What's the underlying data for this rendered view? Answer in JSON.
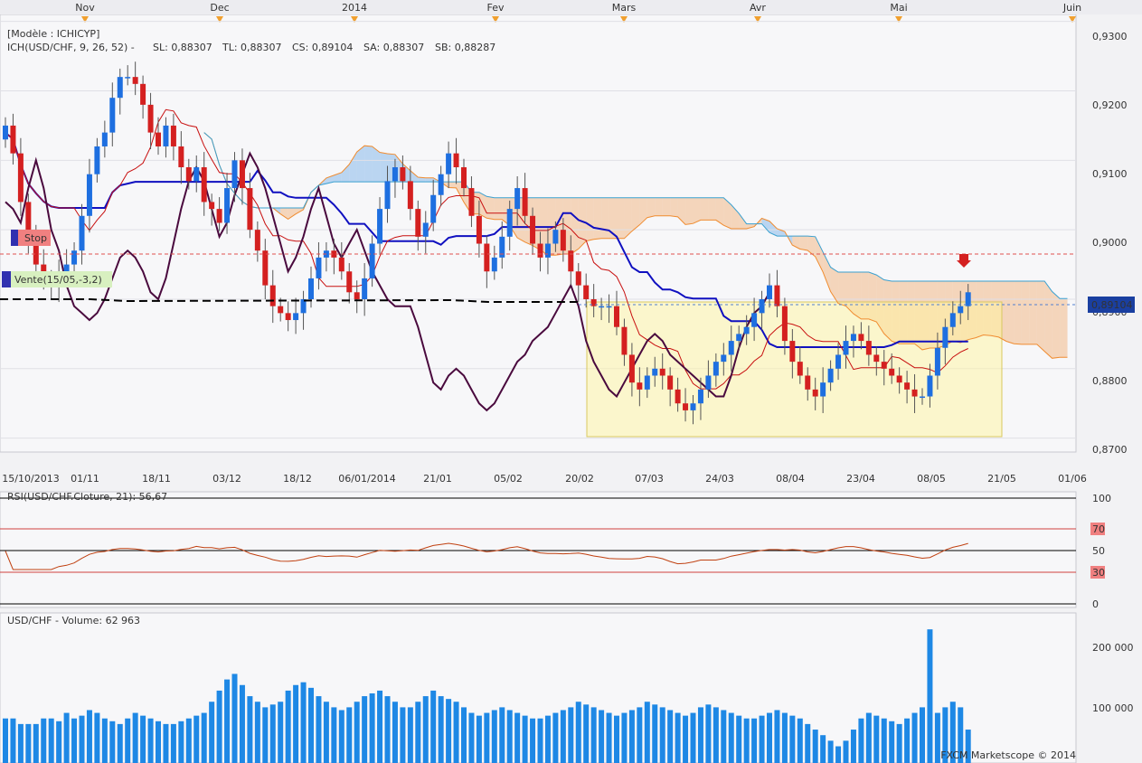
{
  "months": [
    "Nov",
    "Dec",
    "2014",
    "Fev",
    "Mars",
    "Avr",
    "Mai",
    "Juin"
  ],
  "date_labels": [
    "15/10/2013",
    "01/11",
    "18/11",
    "03/12",
    "18/12",
    "06/01/2014",
    "21/01",
    "05/02",
    "20/02",
    "07/03",
    "24/03",
    "08/04",
    "23/04",
    "08/05",
    "21/05",
    "01/06"
  ],
  "legend": {
    "model": "[Modèle : ICHICYP]",
    "ich": "ICH(USD/CHF, 9, 26, 52) -",
    "sl": "SL: 0,88307",
    "tl": "TL: 0,88307",
    "cs": "CS: 0,89104",
    "sa": "SA: 0,88307",
    "sb": "SB: 0,88287"
  },
  "markers": {
    "stop": "Stop",
    "sell": "Vente(15/05,-3,2)"
  },
  "rsi": {
    "title": "RSI(USD/CHF.Cloture, 21): 56,67",
    "levels": [
      "100",
      "70",
      "50",
      "30",
      "0"
    ]
  },
  "volume": {
    "title": "USD/CHF - Volume: 62 963",
    "ticks": [
      "200 000",
      "100 000"
    ]
  },
  "watermark": "FXCM Marketscope © 2014",
  "colors": {
    "bull": "#1e6fe0",
    "bear": "#d42020",
    "tenkan": "#c81010",
    "kijun": "#1010c0",
    "chikou": "#4a0a3e",
    "cloud_bear": "rgba(240,170,110,0.45)",
    "cloud_bull": "rgba(110,170,230,0.45)",
    "ssa": "#f08c30",
    "ssb": "#3aa0d0",
    "rsi": "#c04010",
    "volume": "#1e88e5",
    "highlight_box": "rgba(255,245,160,0.55)"
  },
  "chart_data": {
    "type": "candlestick",
    "instrument": "USD/CHF",
    "y_range": [
      0.868,
      0.931
    ],
    "price_ticks": [
      "0,9300",
      "0,9200",
      "0,9100",
      "0,9000",
      "0,8900",
      "0,8800",
      "0,8700"
    ],
    "current_price": "0,89104",
    "closes": [
      0.915,
      0.911,
      0.904,
      0.899,
      0.895,
      0.893,
      0.892,
      0.894,
      0.895,
      0.897,
      0.902,
      0.908,
      0.912,
      0.914,
      0.919,
      0.922,
      0.922,
      0.921,
      0.918,
      0.914,
      0.912,
      0.915,
      0.912,
      0.909,
      0.907,
      0.909,
      0.904,
      0.903,
      0.901,
      0.906,
      0.91,
      0.906,
      0.9,
      0.897,
      0.892,
      0.889,
      0.888,
      0.887,
      0.888,
      0.89,
      0.893,
      0.896,
      0.897,
      0.896,
      0.894,
      0.891,
      0.89,
      0.893,
      0.898,
      0.903,
      0.907,
      0.909,
      0.907,
      0.903,
      0.899,
      0.901,
      0.905,
      0.908,
      0.911,
      0.909,
      0.906,
      0.902,
      0.898,
      0.894,
      0.896,
      0.899,
      0.903,
      0.906,
      0.902,
      0.898,
      0.896,
      0.898,
      0.9,
      0.897,
      0.894,
      0.892,
      0.89,
      0.889,
      0.889,
      0.889,
      0.886,
      0.882,
      0.878,
      0.877,
      0.879,
      0.88,
      0.879,
      0.877,
      0.875,
      0.874,
      0.875,
      0.877,
      0.879,
      0.881,
      0.882,
      0.884,
      0.885,
      0.886,
      0.888,
      0.89,
      0.892,
      0.889,
      0.884,
      0.881,
      0.879,
      0.877,
      0.876,
      0.878,
      0.88,
      0.882,
      0.884,
      0.885,
      0.884,
      0.882,
      0.881,
      0.88,
      0.879,
      0.878,
      0.877,
      0.876,
      0.876,
      0.879,
      0.883,
      0.886,
      0.888,
      0.889,
      0.891
    ],
    "volumes": [
      80000,
      80000,
      70000,
      70000,
      70000,
      80000,
      80000,
      75000,
      90000,
      80000,
      85000,
      95000,
      90000,
      80000,
      75000,
      70000,
      80000,
      90000,
      85000,
      80000,
      75000,
      70000,
      70000,
      75000,
      80000,
      85000,
      90000,
      110000,
      130000,
      150000,
      160000,
      140000,
      120000,
      110000,
      100000,
      105000,
      110000,
      130000,
      140000,
      145000,
      135000,
      120000,
      110000,
      100000,
      95000,
      100000,
      110000,
      120000,
      125000,
      130000,
      120000,
      110000,
      100000,
      100000,
      110000,
      120000,
      130000,
      120000,
      115000,
      110000,
      100000,
      90000,
      85000,
      90000,
      95000,
      100000,
      95000,
      90000,
      85000,
      80000,
      80000,
      85000,
      90000,
      95000,
      100000,
      110000,
      105000,
      100000,
      95000,
      90000,
      85000,
      90000,
      95000,
      100000,
      110000,
      105000,
      100000,
      95000,
      90000,
      85000,
      90000,
      100000,
      105000,
      100000,
      95000,
      90000,
      85000,
      80000,
      80000,
      85000,
      90000,
      95000,
      90000,
      85000,
      80000,
      70000,
      60000,
      50000,
      40000,
      30000,
      40000,
      60000,
      80000,
      90000,
      85000,
      80000,
      75000,
      70000,
      80000,
      90000,
      100000,
      240000,
      90000,
      100000,
      110000,
      100000,
      60000
    ]
  }
}
